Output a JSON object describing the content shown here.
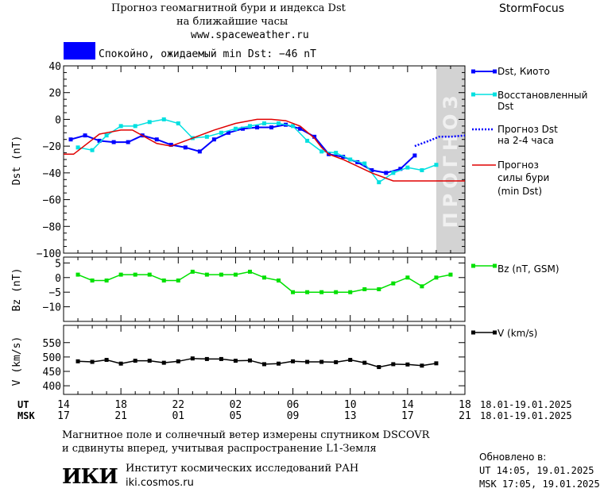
{
  "header": {
    "title_line1": "Прогноз геомагнитной бури и индекса Dst",
    "title_line2": "на ближайшие часы",
    "site": "www.spaceweather.ru",
    "brand": "StormFocus"
  },
  "status": {
    "text": "Спокойно, ожидаемый min Dst: −46 nT",
    "color": "#0000ff"
  },
  "forecast_label": "ПРОГНОЗ",
  "legend": {
    "dst_kyoto": "Dst, Киото",
    "restored_1": "Восстановленный",
    "restored_2": "Dst",
    "forecast_1": "Прогноз Dst",
    "forecast_2": "на 2-4 часа",
    "storm_1": "Прогноз",
    "storm_2": "силы бури",
    "storm_3": "(min Dst)",
    "bz": "Bz (nT, GSM)",
    "v": "V (km/s)"
  },
  "axes": {
    "dst_ylabel": "Dst (nT)",
    "bz_ylabel": "Bz (nT)",
    "v_ylabel": "V (km/s)",
    "ut_label": "UT",
    "msk_label": "MSK",
    "ut_range": "18.01-19.01.2025",
    "msk_range": "18.01-19.01.2025"
  },
  "footer": {
    "line1": "Магнитное поле и солнечный ветер измерены спутником DSCOVR",
    "line2": "и сдвинуты вперед, учитывая распространение L1-Земля",
    "institute": "Институт космических исследований РАН",
    "site": "iki.cosmos.ru",
    "logo": "ИКИ",
    "updated_label": "Обновлено в:",
    "updated_ut": "UT  14:05, 19.01.2025",
    "updated_msk": "MSK 17:05, 19.01.2025"
  },
  "chart_data": {
    "type": "line",
    "x_range_hours": [
      14,
      42
    ],
    "forecast_band_hours": [
      40.0,
      42.0
    ],
    "x_ticks_ut": [
      "14",
      "18",
      "22",
      "02",
      "06",
      "10",
      "14",
      "18"
    ],
    "x_ticks_msk": [
      "17",
      "21",
      "01",
      "05",
      "09",
      "13",
      "17",
      "21"
    ],
    "panels": [
      {
        "name": "dst",
        "ylim": [
          -100,
          40
        ],
        "yticks": [
          40,
          20,
          0,
          -20,
          -40,
          -60,
          -80,
          -100
        ],
        "series": [
          {
            "name": "Dst, Киото",
            "color": "#0000ff",
            "x": [
              14.5,
              15.5,
              16.5,
              17.5,
              18.5,
              19.5,
              20.5,
              21.5,
              22.5,
              23.5,
              24.5,
              25.5,
              26.5,
              27.5,
              28.5,
              29.5,
              30.5,
              31.5,
              32.5,
              33.5,
              34.5,
              35.5,
              36.5,
              37.5,
              38.5
            ],
            "y": [
              -15,
              -12,
              -16,
              -17,
              -17,
              -12,
              -15,
              -19,
              -21,
              -24,
              -15,
              -10,
              -7,
              -6,
              -6,
              -4,
              -7,
              -13,
              -26,
              -28,
              -32,
              -38,
              -40,
              -37,
              -27
            ]
          },
          {
            "name": "Восстановленный Dst",
            "color": "#00e0e0",
            "x": [
              15.0,
              16.0,
              17.0,
              18.0,
              19.0,
              20.0,
              21.0,
              22.0,
              23.0,
              24.0,
              25.0,
              26.0,
              27.0,
              28.0,
              29.0,
              30.0,
              31.0,
              32.0,
              33.0,
              34.0,
              35.0,
              36.0,
              37.0,
              38.0,
              39.0,
              40.0
            ],
            "y": [
              -21,
              -23,
              -12,
              -5,
              -5,
              -2,
              0,
              -3,
              -14,
              -13,
              -10,
              -7,
              -5,
              -3,
              -3,
              -5,
              -16,
              -24,
              -25,
              -30,
              -33,
              -47,
              -40,
              -36,
              -38,
              -34
            ]
          },
          {
            "name": "Прогноз Dst на 2-4 часа",
            "color": "#0000ff",
            "x": [
              38.5,
              39.5,
              40.2,
              41.0,
              42.0,
              43.0
            ],
            "y": [
              -20,
              -16,
              -13,
              -13,
              -12,
              -12
            ]
          },
          {
            "name": "Прогноз силы бури (min Dst)",
            "color": "#e00000",
            "x": [
              14.0,
              14.7,
              16.5,
              18.0,
              18.8,
              20.5,
              21.5,
              22.5,
              24.5,
              26.0,
              27.5,
              28.5,
              29.5,
              30.5,
              31.5,
              32.0,
              32.5,
              33.5,
              35.5,
              37.0,
              38.5,
              40.0,
              42.0,
              46.0
            ],
            "y": [
              -26,
              -26,
              -11,
              -8,
              -8,
              -18,
              -20,
              -16,
              -8,
              -3,
              0,
              0,
              -1,
              -5,
              -14,
              -21,
              -26,
              -30,
              -40,
              -46,
              -46,
              -46,
              -46,
              -46
            ]
          }
        ]
      },
      {
        "name": "bz",
        "ylim": [
          -15,
          7
        ],
        "yticks": [
          5,
          0,
          -5,
          -10
        ],
        "series": [
          {
            "name": "Bz (nT, GSM)",
            "color": "#00e000",
            "x": [
              15.0,
              16.0,
              17.0,
              18.0,
              19.0,
              20.0,
              21.0,
              22.0,
              23.0,
              24.0,
              25.0,
              26.0,
              27.0,
              28.0,
              29.0,
              30.0,
              31.0,
              32.0,
              33.0,
              34.0,
              35.0,
              36.0,
              37.0,
              38.0,
              39.0,
              40.0,
              41.0
            ],
            "y": [
              1,
              -1,
              -1,
              1,
              1,
              1,
              -1,
              -1,
              2,
              1,
              1,
              1,
              2,
              0,
              -1,
              -5,
              -5,
              -5,
              -5,
              -5,
              -4,
              -4,
              -2,
              0,
              -3,
              0,
              1
            ]
          }
        ]
      },
      {
        "name": "v",
        "ylim": [
          370,
          610
        ],
        "yticks": [
          550,
          500,
          450,
          400
        ],
        "series": [
          {
            "name": "V (km/s)",
            "color": "#000000",
            "x": [
              15.0,
              16.0,
              17.0,
              18.0,
              19.0,
              20.0,
              21.0,
              22.0,
              23.0,
              24.0,
              25.0,
              26.0,
              27.0,
              28.0,
              29.0,
              30.0,
              31.0,
              32.0,
              33.0,
              34.0,
              35.0,
              36.0,
              37.0,
              38.0,
              39.0,
              40.0
            ],
            "y": [
              485,
              483,
              490,
              477,
              487,
              487,
              480,
              485,
              495,
              493,
              493,
              487,
              488,
              475,
              477,
              485,
              483,
              483,
              482,
              490,
              480,
              465,
              475,
              474,
              470,
              478
            ]
          }
        ]
      }
    ]
  }
}
